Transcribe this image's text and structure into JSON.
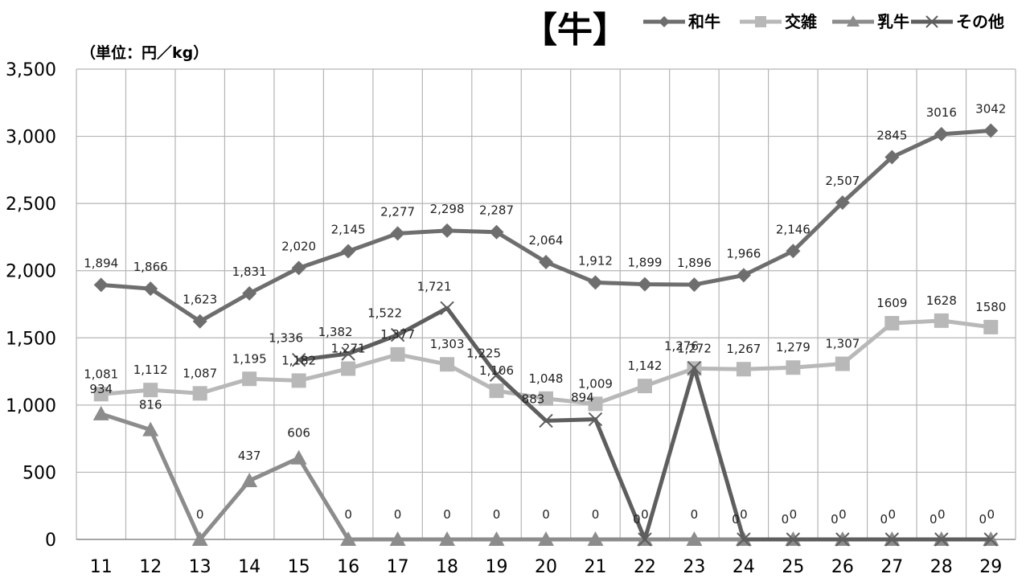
{
  "chart_data": {
    "type": "line",
    "title": "【牛】",
    "unit_label": "（単位：円／kg）",
    "categories": [
      "11",
      "12",
      "13",
      "14",
      "15",
      "16",
      "17",
      "18",
      "19",
      "20",
      "21",
      "22",
      "23",
      "24",
      "25",
      "26",
      "27",
      "28",
      "29"
    ],
    "ylim": [
      0,
      3500
    ],
    "yticks": [
      0,
      500,
      1000,
      1500,
      2000,
      2500,
      3000,
      3500
    ],
    "ytick_labels": [
      "0",
      "500",
      "1,000",
      "1,500",
      "2,000",
      "2,500",
      "3,000",
      "3,500"
    ],
    "grid": true,
    "legend_position": "top-right",
    "series": [
      {
        "name": "和牛",
        "color": "#6e6e6e",
        "marker": "diamond",
        "values": [
          1894,
          1866,
          1623,
          1831,
          2020,
          2145,
          2277,
          2298,
          2287,
          2064,
          1912,
          1899,
          1896,
          1966,
          2146,
          2507,
          2845,
          3016,
          3042
        ],
        "labels": [
          "1,894",
          "1,866",
          "1,623",
          "1,831",
          "2,020",
          "2,145",
          "2,277",
          "2,298",
          "2,287",
          "2,064",
          "1,912",
          "1,899",
          "1,896",
          "1,966",
          "2,146",
          "2,507",
          "2845",
          "3016",
          "3042"
        ]
      },
      {
        "name": "交雑",
        "color": "#b8b8b8",
        "marker": "square",
        "values": [
          1081,
          1112,
          1087,
          1195,
          1182,
          1271,
          1377,
          1303,
          1106,
          1048,
          1009,
          1142,
          1272,
          1267,
          1279,
          1307,
          1609,
          1628,
          1580
        ],
        "labels": [
          "1,081",
          "1,112",
          "1,087",
          "1,195",
          "1,182",
          "1,271",
          "1,377",
          "1,303",
          "1,106",
          "1,048",
          "1,009",
          "1,142",
          "1,272",
          "1,267",
          "1,279",
          "1,307",
          "1609",
          "1628",
          "1580"
        ]
      },
      {
        "name": "乳牛",
        "color": "#8c8c8c",
        "marker": "triangle",
        "values": [
          934,
          816,
          0,
          437,
          606,
          0,
          0,
          0,
          0,
          0,
          0,
          0,
          0,
          0,
          0,
          0,
          0,
          0,
          0
        ],
        "labels": [
          "934",
          "816",
          "0",
          "437",
          "606",
          "0",
          "0",
          "0",
          "0",
          "0",
          "0",
          "0",
          "0",
          "0",
          "0",
          "0",
          "0",
          "0",
          "0"
        ]
      },
      {
        "name": "その他",
        "color": "#5e5e5e",
        "marker": "x",
        "values": [
          null,
          null,
          null,
          null,
          1336,
          1382,
          1522,
          1721,
          1225,
          883,
          894,
          0,
          1276,
          0,
          0,
          0,
          0,
          0,
          0
        ],
        "labels": [
          "",
          "",
          "",
          "",
          "1,336",
          "1,382",
          "1,522",
          "1,721",
          "1,225",
          "883",
          "894",
          "0",
          "1,276",
          "0",
          "0",
          "0",
          "0",
          "0",
          "0"
        ]
      }
    ]
  }
}
